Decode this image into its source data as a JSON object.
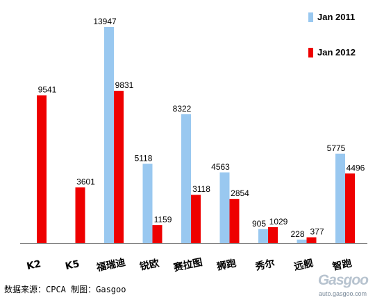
{
  "chart_data": {
    "type": "bar",
    "categories": [
      "K2",
      "K5",
      "福瑞迪",
      "锐欧",
      "赛拉图",
      "狮跑",
      "秀尔",
      "远舰",
      "智跑"
    ],
    "series": [
      {
        "name": "Jan 2011",
        "color": "#99c8f0",
        "values": [
          null,
          null,
          13947,
          5118,
          8322,
          4563,
          905,
          228,
          5775
        ]
      },
      {
        "name": "Jan 2012",
        "color": "#ee0000",
        "values": [
          9541,
          3601,
          9831,
          1159,
          3118,
          2854,
          1029,
          377,
          4496
        ]
      }
    ],
    "ylim": [
      0,
      14000
    ],
    "grid": false,
    "legend": "top-right"
  },
  "source_note": "数据来源：CPCA  制图：Gasgoo",
  "watermark": {
    "logo": "Gasgoo",
    "url": "auto.gasgoo.com"
  }
}
